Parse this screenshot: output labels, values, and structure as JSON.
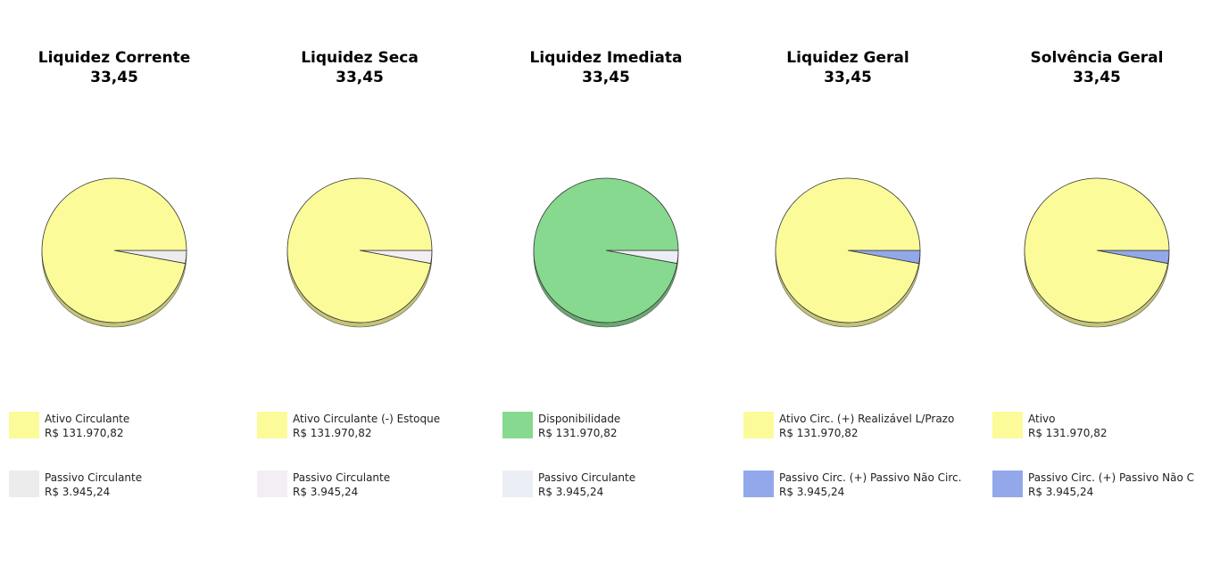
{
  "chart_data": [
    {
      "type": "pie",
      "title": "Liquidez Corrente",
      "subtitle": "33,45",
      "slices": [
        {
          "label": "Ativo Circulante",
          "value_text": "R$ 131.970,82",
          "value": 131970.82,
          "color": "#fbfb9a"
        },
        {
          "label": "Passivo Circulante",
          "value_text": "R$ 3.945,24",
          "value": 3945.24,
          "color": "#ececec"
        }
      ]
    },
    {
      "type": "pie",
      "title": "Liquidez Seca",
      "subtitle": "33,45",
      "slices": [
        {
          "label": "Ativo Circulante (-) Estoque",
          "value_text": "R$ 131.970,82",
          "value": 131970.82,
          "color": "#fbfb9a"
        },
        {
          "label": "Passivo Circulante",
          "value_text": "R$ 3.945,24",
          "value": 3945.24,
          "color": "#f3eef3"
        }
      ]
    },
    {
      "type": "pie",
      "title": "Liquidez Imediata",
      "subtitle": "33,45",
      "slices": [
        {
          "label": "Disponibilidade",
          "value_text": "R$ 131.970,82",
          "value": 131970.82,
          "color": "#86d98f"
        },
        {
          "label": "Passivo Circulante",
          "value_text": "R$ 3.945,24",
          "value": 3945.24,
          "color": "#eceef5"
        }
      ]
    },
    {
      "type": "pie",
      "title": "Liquidez Geral",
      "subtitle": "33,45",
      "slices": [
        {
          "label": "Ativo Circ. (+) Realizável L/Prazo",
          "value_text": "R$ 131.970,82",
          "value": 131970.82,
          "color": "#fbfb9a"
        },
        {
          "label": "Passivo Circ. (+) Passivo Não Circ.",
          "value_text": "R$ 3.945,24",
          "value": 3945.24,
          "color": "#93a8ea"
        }
      ]
    },
    {
      "type": "pie",
      "title": "Solvência Geral",
      "subtitle": "33,45",
      "slices": [
        {
          "label": "Ativo",
          "value_text": "R$ 131.970,82",
          "value": 131970.82,
          "color": "#fbfb9a"
        },
        {
          "label": "Passivo Circ. (+) Passivo Não C",
          "value_text": "R$ 3.945,24",
          "value": 3945.24,
          "color": "#93a8ea"
        }
      ]
    }
  ]
}
